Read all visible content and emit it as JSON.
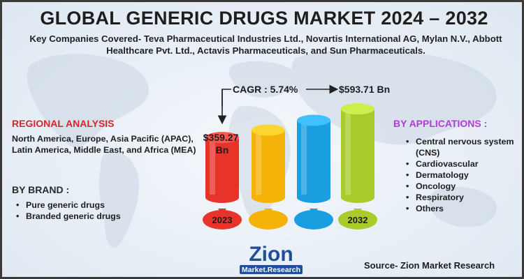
{
  "title": "GLOBAL GENERIC DRUGS MARKET 2024 – 2032",
  "subtitle": "Key Companies Covered- Teva Pharmaceutical Industries Ltd., Novartis International AG, Mylan N.V., Abbott Healthcare Pvt. Ltd., Actavis Pharmaceuticals, and Sun Pharmaceuticals.",
  "regional": {
    "heading": "REGIONAL ANALYSIS",
    "text": "North America, Europe, Asia Pacific (APAC), Latin America, Middle East, and Africa (MEA)"
  },
  "brand": {
    "heading": "BY BRAND :",
    "items": [
      "Pure generic drugs",
      "Branded generic drugs"
    ]
  },
  "applications": {
    "heading": "BY APPLICATIONS :",
    "items": [
      "Central nervous system (CNS)",
      "Cardiovascular",
      "Dermatology",
      "Oncology",
      "Respiratory",
      "Others"
    ]
  },
  "source": "Source- Zion Market Research",
  "logo": {
    "word": "Zion",
    "tagline": "Market.Research"
  },
  "colors": {
    "title": "#1e1e1e",
    "regional_heading": "#d4262b",
    "applications_heading": "#b13cd6",
    "bar_red": "#e8332b",
    "bar_yellow": "#f5b30a",
    "bar_blue": "#1a9ee0",
    "bar_green": "#a9cc2c"
  },
  "chart_data": {
    "type": "bar",
    "categories": [
      "2023",
      "",
      "",
      "2032"
    ],
    "values": [
      359.27,
      420,
      500,
      593.71
    ],
    "annotations": {
      "start_value_label": "$359.27 Bn",
      "end_value_label": "$593.71 Bn",
      "cagr_label": "CAGR : 5.74%"
    },
    "bar_colors": [
      "#e8332b",
      "#f5b30a",
      "#1a9ee0",
      "#a9cc2c"
    ]
  }
}
